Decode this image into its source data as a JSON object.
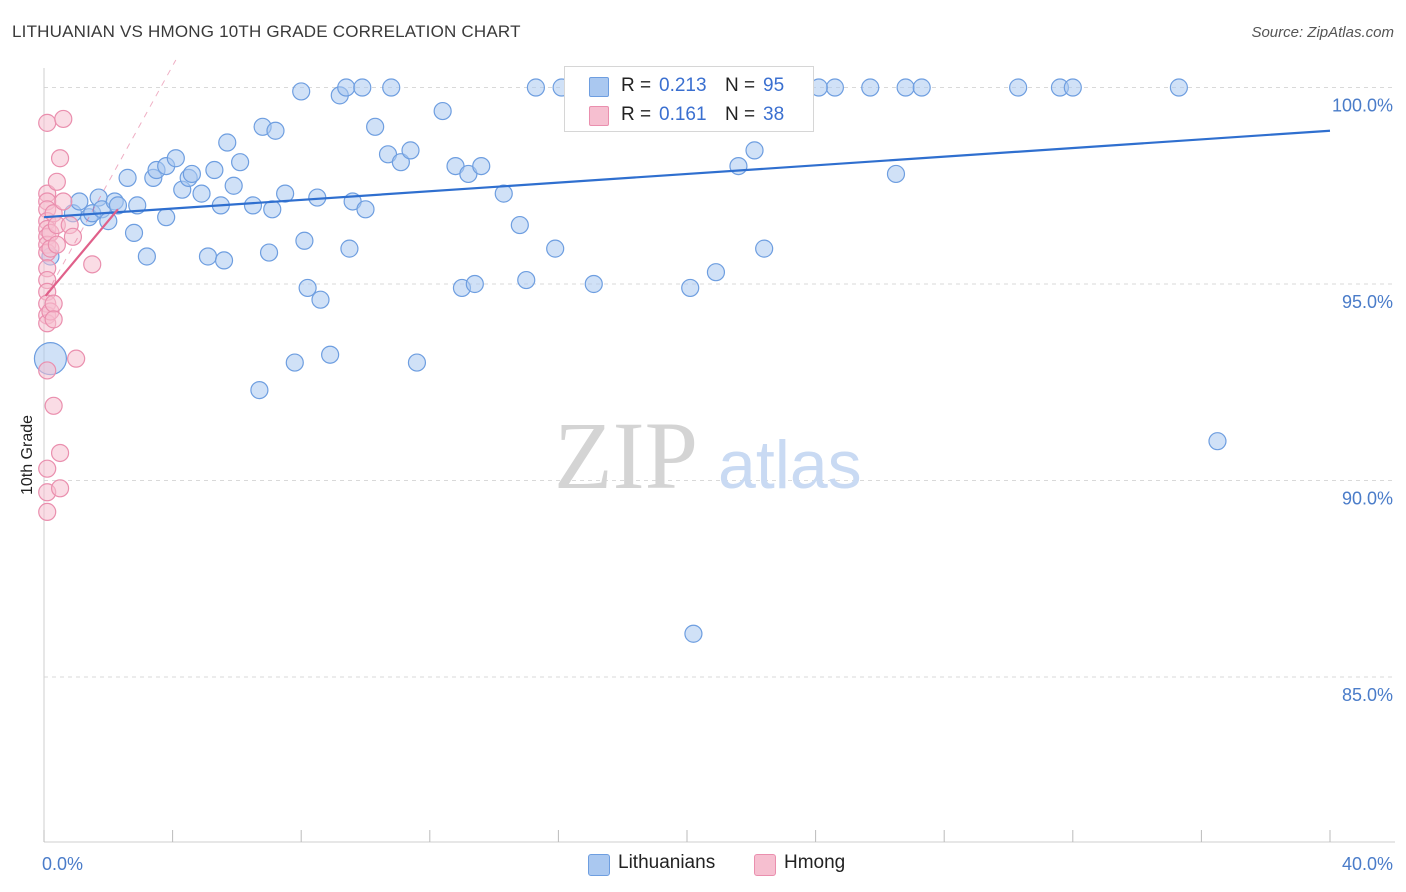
{
  "title": "LITHUANIAN VS HMONG 10TH GRADE CORRELATION CHART",
  "source": "Source: ZipAtlas.com",
  "watermark": {
    "zip": "ZIP",
    "atlas": "atlas"
  },
  "stats": [
    {
      "r_label": "R =",
      "r_value": "0.213",
      "n_label": "N =",
      "n_value": "95"
    },
    {
      "r_label": "R =",
      "r_value": "0.161",
      "n_label": "N =",
      "n_value": "38"
    }
  ],
  "legend": [
    {
      "label": "Lithuanians"
    },
    {
      "label": "Hmong"
    }
  ],
  "colors": {
    "blue_fill": "#aac8f0",
    "blue_stroke": "#6e9ee0",
    "blue_line": "#2f6fcf",
    "pink_fill": "#f6bfd0",
    "pink_stroke": "#ea8fae",
    "pink_line": "#e0608a",
    "grid": "#d9d9d9",
    "tick_text": "#4a7cc9"
  },
  "chart_data": {
    "type": "scatter",
    "xlabel": "",
    "ylabel": "10th Grade",
    "xlim": [
      0,
      40
    ],
    "ylim": [
      80.8,
      100.7
    ],
    "x_tick_labels": [
      {
        "value": 0,
        "label": "0.0%"
      },
      {
        "value": 40,
        "label": "40.0%"
      }
    ],
    "y_tick_labels": [
      {
        "value": 100,
        "label": "100.0%"
      },
      {
        "value": 95,
        "label": "95.0%"
      },
      {
        "value": 90,
        "label": "90.0%"
      },
      {
        "value": 85,
        "label": "85.0%"
      }
    ],
    "grid": true,
    "legend_position": "bottom-center",
    "series": [
      {
        "name": "Lithuanians",
        "color": "#aac8f0",
        "trend": {
          "x": [
            0,
            40
          ],
          "y": [
            96.7,
            98.9
          ]
        },
        "points": [
          [
            0.2,
            93.1
          ],
          [
            0.2,
            95.7
          ],
          [
            0.9,
            96.8
          ],
          [
            1.1,
            97.1
          ],
          [
            1.4,
            96.7
          ],
          [
            1.5,
            96.8
          ],
          [
            1.7,
            97.2
          ],
          [
            1.8,
            96.9
          ],
          [
            2.0,
            96.6
          ],
          [
            2.2,
            97.1
          ],
          [
            2.3,
            97.0
          ],
          [
            2.6,
            97.7
          ],
          [
            2.8,
            96.3
          ],
          [
            2.9,
            97.0
          ],
          [
            3.2,
            95.7
          ],
          [
            3.4,
            97.7
          ],
          [
            3.5,
            97.9
          ],
          [
            3.8,
            98.0
          ],
          [
            3.8,
            96.7
          ],
          [
            4.1,
            98.2
          ],
          [
            4.3,
            97.4
          ],
          [
            4.5,
            97.7
          ],
          [
            4.6,
            97.8
          ],
          [
            4.9,
            97.3
          ],
          [
            5.1,
            95.7
          ],
          [
            5.3,
            97.9
          ],
          [
            5.5,
            97.0
          ],
          [
            5.6,
            95.6
          ],
          [
            5.7,
            98.6
          ],
          [
            5.9,
            97.5
          ],
          [
            6.1,
            98.1
          ],
          [
            6.5,
            97.0
          ],
          [
            6.7,
            92.3
          ],
          [
            6.8,
            99.0
          ],
          [
            7.0,
            95.8
          ],
          [
            7.1,
            96.9
          ],
          [
            7.2,
            98.9
          ],
          [
            7.5,
            97.3
          ],
          [
            7.8,
            93.0
          ],
          [
            8.0,
            99.9
          ],
          [
            8.1,
            96.1
          ],
          [
            8.2,
            94.9
          ],
          [
            8.5,
            97.2
          ],
          [
            8.6,
            94.6
          ],
          [
            8.9,
            93.2
          ],
          [
            9.2,
            99.8
          ],
          [
            9.4,
            100.0
          ],
          [
            9.5,
            95.9
          ],
          [
            9.6,
            97.1
          ],
          [
            9.9,
            100.0
          ],
          [
            10.0,
            96.9
          ],
          [
            10.3,
            99.0
          ],
          [
            10.7,
            98.3
          ],
          [
            10.8,
            100.0
          ],
          [
            11.1,
            98.1
          ],
          [
            11.4,
            98.4
          ],
          [
            11.6,
            93.0
          ],
          [
            12.4,
            99.4
          ],
          [
            12.8,
            98.0
          ],
          [
            13.0,
            94.9
          ],
          [
            13.2,
            97.8
          ],
          [
            13.4,
            95.0
          ],
          [
            13.6,
            98.0
          ],
          [
            14.3,
            97.3
          ],
          [
            14.8,
            96.5
          ],
          [
            15.0,
            95.1
          ],
          [
            15.3,
            100.0
          ],
          [
            15.9,
            95.9
          ],
          [
            16.1,
            100.0
          ],
          [
            16.6,
            100.0
          ],
          [
            17.1,
            95.0
          ],
          [
            18.0,
            100.0
          ],
          [
            18.2,
            100.0
          ],
          [
            19.2,
            100.0
          ],
          [
            20.1,
            94.9
          ],
          [
            20.2,
            86.1
          ],
          [
            20.4,
            100.0
          ],
          [
            20.9,
            95.3
          ],
          [
            21.6,
            98.0
          ],
          [
            22.1,
            98.4
          ],
          [
            22.3,
            100.0
          ],
          [
            22.4,
            95.9
          ],
          [
            23.5,
            100.0
          ],
          [
            24.6,
            100.0
          ],
          [
            25.7,
            100.0
          ],
          [
            26.5,
            97.8
          ],
          [
            26.8,
            100.0
          ],
          [
            27.3,
            100.0
          ],
          [
            30.3,
            100.0
          ],
          [
            31.6,
            100.0
          ],
          [
            32.0,
            100.0
          ],
          [
            35.3,
            100.0
          ],
          [
            36.5,
            91.0
          ],
          [
            20.1,
            100.0
          ],
          [
            24.1,
            100.0
          ]
        ]
      },
      {
        "name": "Hmong",
        "color": "#f6bfd0",
        "trend": {
          "x": [
            0.05,
            2.3
          ],
          "y": [
            94.7,
            96.9
          ]
        },
        "points": [
          [
            0.1,
            99.1
          ],
          [
            0.1,
            97.3
          ],
          [
            0.1,
            97.1
          ],
          [
            0.1,
            96.9
          ],
          [
            0.1,
            96.6
          ],
          [
            0.1,
            96.4
          ],
          [
            0.1,
            96.2
          ],
          [
            0.1,
            96.0
          ],
          [
            0.1,
            95.8
          ],
          [
            0.1,
            95.4
          ],
          [
            0.1,
            95.1
          ],
          [
            0.1,
            94.8
          ],
          [
            0.1,
            94.5
          ],
          [
            0.1,
            94.2
          ],
          [
            0.1,
            94.0
          ],
          [
            0.1,
            92.8
          ],
          [
            0.1,
            90.3
          ],
          [
            0.1,
            89.7
          ],
          [
            0.1,
            89.2
          ],
          [
            0.2,
            96.3
          ],
          [
            0.2,
            95.9
          ],
          [
            0.2,
            94.3
          ],
          [
            0.3,
            94.5
          ],
          [
            0.3,
            96.8
          ],
          [
            0.3,
            94.1
          ],
          [
            0.3,
            91.9
          ],
          [
            0.4,
            97.6
          ],
          [
            0.4,
            96.0
          ],
          [
            0.4,
            96.5
          ],
          [
            0.5,
            89.8
          ],
          [
            0.5,
            98.2
          ],
          [
            0.5,
            90.7
          ],
          [
            0.6,
            99.2
          ],
          [
            0.6,
            97.1
          ],
          [
            0.8,
            96.5
          ],
          [
            0.9,
            96.2
          ],
          [
            1.0,
            93.1
          ],
          [
            1.5,
            95.5
          ]
        ]
      }
    ]
  }
}
